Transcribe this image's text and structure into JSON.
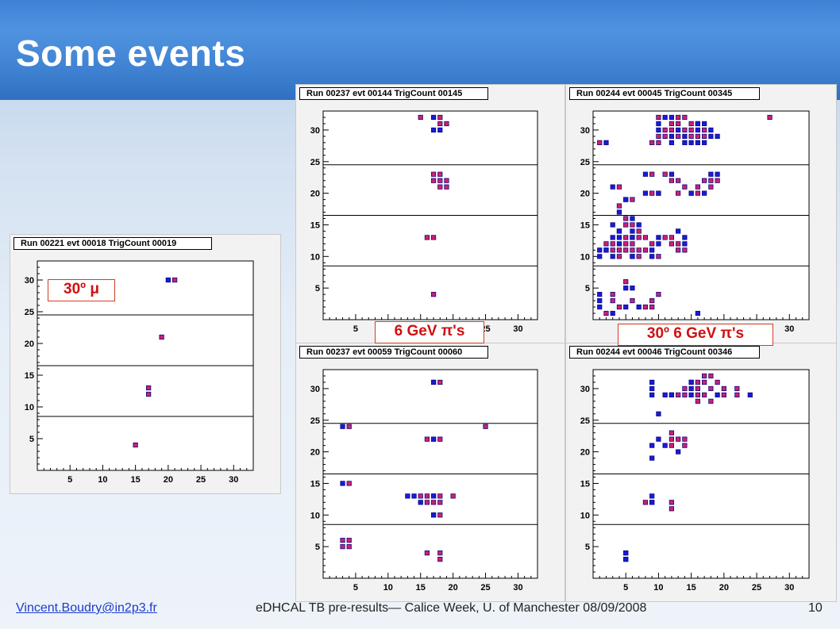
{
  "slide": {
    "title": "Some events",
    "footer_left": "Vincent.Boudry@in2p3.fr",
    "footer_center": "eDHCAL TB pre-results— Calice Week, U. of Manchester 08/09/2008",
    "page_number": "10"
  },
  "tags": {
    "mu": "30º μ",
    "pi": "6 GeV π's",
    "pi30": "30º 6 GeV π's"
  },
  "colors": {
    "red_pad": "#d0206e",
    "blue_pad": "#1a1adc",
    "accent": "#d01010"
  },
  "chart_data": [
    {
      "type": "scatter",
      "title": "Run 00221 evt 00018 TrigCount 00019",
      "xlim": [
        0,
        33
      ],
      "ylim": [
        0,
        33
      ],
      "xticks": [
        5,
        10,
        15,
        20,
        25,
        30
      ],
      "yticks": [
        5,
        10,
        15,
        20,
        25,
        30
      ],
      "grid_y_lines": [
        8.5,
        16.5,
        24.5
      ],
      "series": [
        {
          "color": "red",
          "points": [
            [
              15,
              4
            ],
            [
              17,
              12
            ],
            [
              17,
              13
            ],
            [
              19,
              21
            ],
            [
              21,
              30
            ]
          ]
        },
        {
          "color": "blue",
          "points": [
            [
              20,
              30
            ]
          ]
        }
      ]
    },
    {
      "type": "scatter",
      "title": "Run 00237 evt 00144 TrigCount 00145",
      "xlim": [
        0,
        33
      ],
      "ylim": [
        0,
        33
      ],
      "xticks": [
        5,
        10,
        15,
        20,
        25,
        30
      ],
      "yticks": [
        5,
        10,
        15,
        20,
        25,
        30
      ],
      "grid_y_lines": [
        8.5,
        16.5,
        24.5
      ],
      "series": [
        {
          "color": "red",
          "points": [
            [
              15,
              32
            ],
            [
              18,
              32
            ],
            [
              18,
              31
            ],
            [
              19,
              31
            ],
            [
              17,
              23
            ],
            [
              18,
              23
            ],
            [
              17,
              22
            ],
            [
              18,
              22
            ],
            [
              19,
              22
            ],
            [
              18,
              21
            ],
            [
              19,
              21
            ],
            [
              16,
              13
            ],
            [
              17,
              13
            ],
            [
              17,
              4
            ]
          ]
        },
        {
          "color": "blue",
          "points": [
            [
              17,
              32
            ],
            [
              17,
              30
            ],
            [
              18,
              30
            ]
          ]
        }
      ]
    },
    {
      "type": "scatter",
      "title": "Run 00244 evt 00045 TrigCount 00345",
      "xlim": [
        0,
        33
      ],
      "ylim": [
        0,
        33
      ],
      "xticks": [
        5,
        10,
        15,
        20,
        25,
        30
      ],
      "yticks": [
        5,
        10,
        15,
        20,
        25,
        30
      ],
      "grid_y_lines": [
        8.5,
        16.5,
        24.5
      ],
      "series": [
        {
          "color": "red",
          "points": [
            [
              10,
              32
            ],
            [
              13,
              32
            ],
            [
              14,
              32
            ],
            [
              12,
              31
            ],
            [
              13,
              31
            ],
            [
              15,
              31
            ],
            [
              16,
              31
            ],
            [
              11,
              30
            ],
            [
              12,
              30
            ],
            [
              14,
              30
            ],
            [
              15,
              30
            ],
            [
              17,
              30
            ],
            [
              10,
              29
            ],
            [
              11,
              29
            ],
            [
              13,
              29
            ],
            [
              15,
              29
            ],
            [
              16,
              29
            ],
            [
              17,
              29
            ],
            [
              9,
              28
            ],
            [
              10,
              28
            ],
            [
              27,
              32
            ],
            [
              1,
              28
            ],
            [
              9,
              23
            ],
            [
              11,
              23
            ],
            [
              12,
              22
            ],
            [
              13,
              22
            ],
            [
              17,
              22
            ],
            [
              14,
              21
            ],
            [
              16,
              21
            ],
            [
              18,
              22
            ],
            [
              19,
              22
            ],
            [
              13,
              20
            ],
            [
              15,
              20
            ],
            [
              16,
              20
            ],
            [
              18,
              21
            ],
            [
              5,
              19
            ],
            [
              6,
              19
            ],
            [
              9,
              20
            ],
            [
              10,
              20
            ],
            [
              4,
              21
            ],
            [
              4,
              18
            ],
            [
              5,
              16
            ],
            [
              5,
              15
            ],
            [
              6,
              15
            ],
            [
              7,
              14
            ],
            [
              4,
              14
            ],
            [
              5,
              13
            ],
            [
              6,
              13
            ],
            [
              7,
              13
            ],
            [
              8,
              13
            ],
            [
              11,
              13
            ],
            [
              12,
              13
            ],
            [
              13,
              12
            ],
            [
              2,
              12
            ],
            [
              3,
              12
            ],
            [
              5,
              12
            ],
            [
              6,
              12
            ],
            [
              9,
              12
            ],
            [
              12,
              12
            ],
            [
              2,
              11
            ],
            [
              3,
              11
            ],
            [
              4,
              11
            ],
            [
              5,
              11
            ],
            [
              6,
              11
            ],
            [
              7,
              11
            ],
            [
              8,
              11
            ],
            [
              13,
              11
            ],
            [
              14,
              11
            ],
            [
              4,
              10
            ],
            [
              6,
              10
            ],
            [
              7,
              10
            ],
            [
              10,
              10
            ],
            [
              5,
              6
            ],
            [
              3,
              4
            ],
            [
              3,
              3
            ],
            [
              6,
              3
            ],
            [
              9,
              3
            ],
            [
              10,
              4
            ],
            [
              4,
              2
            ],
            [
              8,
              2
            ],
            [
              9,
              2
            ],
            [
              2,
              1
            ]
          ]
        },
        {
          "color": "blue",
          "points": [
            [
              11,
              32
            ],
            [
              12,
              32
            ],
            [
              10,
              31
            ],
            [
              16,
              31
            ],
            [
              17,
              31
            ],
            [
              10,
              30
            ],
            [
              13,
              30
            ],
            [
              16,
              30
            ],
            [
              18,
              30
            ],
            [
              12,
              29
            ],
            [
              14,
              29
            ],
            [
              18,
              29
            ],
            [
              19,
              29
            ],
            [
              12,
              28
            ],
            [
              14,
              28
            ],
            [
              15,
              28
            ],
            [
              16,
              28
            ],
            [
              17,
              28
            ],
            [
              2,
              28
            ],
            [
              8,
              23
            ],
            [
              12,
              23
            ],
            [
              18,
              23
            ],
            [
              19,
              23
            ],
            [
              3,
              21
            ],
            [
              8,
              20
            ],
            [
              10,
              20
            ],
            [
              15,
              20
            ],
            [
              17,
              20
            ],
            [
              5,
              19
            ],
            [
              4,
              17
            ],
            [
              6,
              16
            ],
            [
              3,
              15
            ],
            [
              7,
              15
            ],
            [
              4,
              14
            ],
            [
              6,
              14
            ],
            [
              13,
              14
            ],
            [
              3,
              13
            ],
            [
              4,
              13
            ],
            [
              6,
              13
            ],
            [
              10,
              13
            ],
            [
              14,
              13
            ],
            [
              4,
              12
            ],
            [
              10,
              12
            ],
            [
              14,
              12
            ],
            [
              1,
              11
            ],
            [
              2,
              11
            ],
            [
              9,
              11
            ],
            [
              1,
              10
            ],
            [
              3,
              10
            ],
            [
              6,
              10
            ],
            [
              9,
              10
            ],
            [
              5,
              5
            ],
            [
              6,
              5
            ],
            [
              1,
              4
            ],
            [
              1,
              3
            ],
            [
              5,
              2
            ],
            [
              7,
              2
            ],
            [
              1,
              2
            ],
            [
              3,
              1
            ],
            [
              16,
              1
            ]
          ]
        }
      ]
    },
    {
      "type": "scatter",
      "title": "Run 00237 evt 00059 TrigCount 00060",
      "xlim": [
        0,
        33
      ],
      "ylim": [
        0,
        33
      ],
      "xticks": [
        5,
        10,
        15,
        20,
        25,
        30
      ],
      "yticks": [
        5,
        10,
        15,
        20,
        25,
        30
      ],
      "grid_y_lines": [
        8.5,
        16.5,
        24.5
      ],
      "series": [
        {
          "color": "red",
          "points": [
            [
              17,
              31
            ],
            [
              18,
              31
            ],
            [
              4,
              24
            ],
            [
              25,
              24
            ],
            [
              16,
              22
            ],
            [
              17,
              22
            ],
            [
              18,
              22
            ],
            [
              4,
              15
            ],
            [
              15,
              13
            ],
            [
              16,
              13
            ],
            [
              17,
              13
            ],
            [
              18,
              13
            ],
            [
              20,
              13
            ],
            [
              16,
              12
            ],
            [
              17,
              12
            ],
            [
              18,
              12
            ],
            [
              17,
              10
            ],
            [
              18,
              10
            ],
            [
              3,
              6
            ],
            [
              4,
              6
            ],
            [
              3,
              5
            ],
            [
              4,
              5
            ],
            [
              16,
              4
            ],
            [
              18,
              4
            ],
            [
              18,
              3
            ]
          ]
        },
        {
          "color": "blue",
          "points": [
            [
              17,
              31
            ],
            [
              3,
              24
            ],
            [
              17,
              22
            ],
            [
              3,
              15
            ],
            [
              13,
              13
            ],
            [
              14,
              13
            ],
            [
              17,
              13
            ],
            [
              15,
              12
            ],
            [
              17,
              10
            ]
          ]
        }
      ]
    },
    {
      "type": "scatter",
      "title": "Run 00244 evt 00046 TrigCount 00346",
      "xlim": [
        0,
        33
      ],
      "ylim": [
        0,
        33
      ],
      "xticks": [
        5,
        10,
        15,
        20,
        25,
        30
      ],
      "yticks": [
        5,
        10,
        15,
        20,
        25,
        30
      ],
      "grid_y_lines": [
        8.5,
        16.5,
        24.5
      ],
      "series": [
        {
          "color": "red",
          "points": [
            [
              17,
              32
            ],
            [
              18,
              32
            ],
            [
              15,
              31
            ],
            [
              16,
              31
            ],
            [
              17,
              31
            ],
            [
              19,
              31
            ],
            [
              14,
              30
            ],
            [
              16,
              30
            ],
            [
              18,
              30
            ],
            [
              20,
              30
            ],
            [
              22,
              30
            ],
            [
              12,
              29
            ],
            [
              13,
              29
            ],
            [
              14,
              29
            ],
            [
              16,
              29
            ],
            [
              17,
              29
            ],
            [
              20,
              29
            ],
            [
              22,
              29
            ],
            [
              16,
              28
            ],
            [
              18,
              28
            ],
            [
              12,
              23
            ],
            [
              12,
              22
            ],
            [
              13,
              22
            ],
            [
              14,
              22
            ],
            [
              12,
              21
            ],
            [
              14,
              21
            ],
            [
              8,
              12
            ],
            [
              9,
              12
            ],
            [
              12,
              12
            ],
            [
              12,
              11
            ],
            [
              5,
              4
            ],
            [
              5,
              3
            ]
          ]
        },
        {
          "color": "blue",
          "points": [
            [
              9,
              31
            ],
            [
              15,
              31
            ],
            [
              9,
              30
            ],
            [
              15,
              30
            ],
            [
              11,
              29
            ],
            [
              12,
              29
            ],
            [
              15,
              29
            ],
            [
              9,
              29
            ],
            [
              19,
              29
            ],
            [
              24,
              29
            ],
            [
              10,
              26
            ],
            [
              10,
              22
            ],
            [
              11,
              21
            ],
            [
              9,
              21
            ],
            [
              13,
              20
            ],
            [
              9,
              19
            ],
            [
              9,
              13
            ],
            [
              9,
              12
            ],
            [
              5,
              4
            ],
            [
              5,
              3
            ]
          ]
        }
      ]
    }
  ]
}
